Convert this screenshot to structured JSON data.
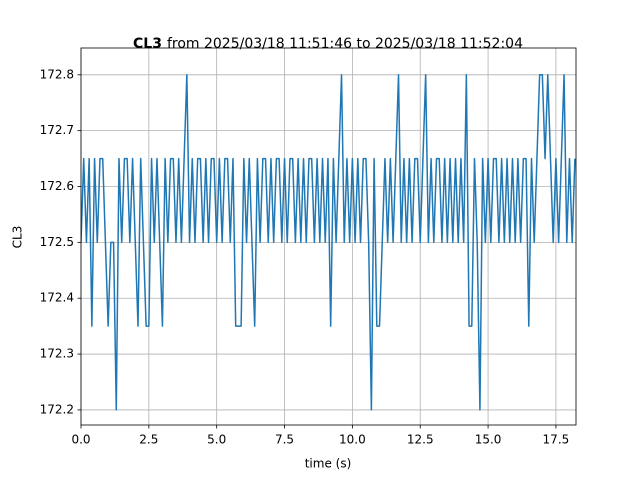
{
  "chart_data": {
    "type": "line",
    "title_parts": [
      "CL3",
      "from 2025/03/18 11:51:46 to 2025/03/18 11:52:04"
    ],
    "xlabel": "time (s)",
    "ylabel": "CL3",
    "color": "#1f77b4",
    "grid": true,
    "xlim": [
      0,
      18.24
    ],
    "ylim": [
      172.173,
      172.848
    ],
    "xticks": [
      {
        "value": 0,
        "label": "0.0"
      },
      2.5,
      {
        "value": 5,
        "label": "5.0"
      },
      7.5,
      {
        "value": 10,
        "label": "10.0"
      },
      12.5,
      {
        "value": 15,
        "label": "15.0"
      },
      17.5
    ],
    "yticks": [
      172.2,
      172.3,
      172.4,
      172.5,
      172.6,
      172.7,
      172.8
    ],
    "x": [
      0,
      0.1,
      0.2,
      0.3,
      0.4,
      0.5,
      0.6,
      0.7,
      0.8,
      0.9,
      1,
      1.1,
      1.2,
      1.3,
      1.4,
      1.5,
      1.6,
      1.7,
      1.8,
      1.9,
      2,
      2.1,
      2.2,
      2.3,
      2.4,
      2.5,
      2.6,
      2.7,
      2.8,
      2.9,
      3,
      3.1,
      3.2,
      3.3,
      3.4,
      3.5,
      3.6,
      3.7,
      3.8,
      3.9,
      4,
      4.1,
      4.2,
      4.3,
      4.4,
      4.5,
      4.6,
      4.7,
      4.8,
      4.9,
      5,
      5.1,
      5.2,
      5.3,
      5.4,
      5.5,
      5.6,
      5.7,
      5.8,
      5.9,
      6,
      6.1,
      6.2,
      6.3,
      6.4,
      6.5,
      6.6,
      6.7,
      6.8,
      6.9,
      7,
      7.1,
      7.2,
      7.3,
      7.4,
      7.5,
      7.6,
      7.7,
      7.8,
      7.9,
      8,
      8.1,
      8.2,
      8.3,
      8.4,
      8.5,
      8.6,
      8.7,
      8.8,
      8.9,
      9,
      9.1,
      9.2,
      9.3,
      9.4,
      9.5,
      9.6,
      9.7,
      9.8,
      9.9,
      10,
      10.1,
      10.2,
      10.3,
      10.4,
      10.5,
      10.6,
      10.7,
      10.8,
      10.9,
      11,
      11.1,
      11.2,
      11.3,
      11.4,
      11.5,
      11.6,
      11.7,
      11.8,
      11.9,
      12,
      12.1,
      12.2,
      12.3,
      12.4,
      12.5,
      12.6,
      12.7,
      12.8,
      12.9,
      13,
      13.1,
      13.2,
      13.3,
      13.4,
      13.5,
      13.6,
      13.7,
      13.8,
      13.9,
      14,
      14.1,
      14.2,
      14.3,
      14.4,
      14.5,
      14.6,
      14.7,
      14.8,
      14.9,
      15,
      15.1,
      15.2,
      15.3,
      15.4,
      15.5,
      15.6,
      15.7,
      15.8,
      15.9,
      16,
      16.1,
      16.2,
      16.3,
      16.4,
      16.5,
      16.6,
      16.7,
      16.8,
      16.9,
      17,
      17.1,
      17.2,
      17.3,
      17.4,
      17.5,
      17.6,
      17.7,
      17.8,
      17.9,
      18,
      18.1,
      18.2
    ],
    "values": [
      172.5,
      172.65,
      172.5,
      172.65,
      172.35,
      172.65,
      172.5,
      172.65,
      172.65,
      172.5,
      172.35,
      172.5,
      172.5,
      172.2,
      172.65,
      172.5,
      172.65,
      172.65,
      172.5,
      172.65,
      172.5,
      172.35,
      172.65,
      172.5,
      172.35,
      172.35,
      172.65,
      172.5,
      172.65,
      172.5,
      172.35,
      172.65,
      172.5,
      172.65,
      172.65,
      172.5,
      172.65,
      172.5,
      172.65,
      172.8,
      172.5,
      172.65,
      172.5,
      172.65,
      172.65,
      172.5,
      172.65,
      172.5,
      172.65,
      172.65,
      172.5,
      172.65,
      172.5,
      172.65,
      172.65,
      172.5,
      172.65,
      172.35,
      172.35,
      172.35,
      172.65,
      172.5,
      172.65,
      172.5,
      172.35,
      172.65,
      172.5,
      172.65,
      172.65,
      172.5,
      172.65,
      172.5,
      172.65,
      172.65,
      172.5,
      172.65,
      172.5,
      172.65,
      172.65,
      172.5,
      172.65,
      172.5,
      172.65,
      172.5,
      172.65,
      172.65,
      172.5,
      172.65,
      172.5,
      172.65,
      172.5,
      172.65,
      172.35,
      172.65,
      172.5,
      172.65,
      172.8,
      172.5,
      172.65,
      172.5,
      172.65,
      172.5,
      172.65,
      172.5,
      172.65,
      172.65,
      172.5,
      172.2,
      172.65,
      172.35,
      172.35,
      172.5,
      172.65,
      172.5,
      172.65,
      172.5,
      172.65,
      172.8,
      172.5,
      172.65,
      172.5,
      172.65,
      172.5,
      172.65,
      172.65,
      172.5,
      172.65,
      172.8,
      172.5,
      172.65,
      172.5,
      172.65,
      172.65,
      172.5,
      172.65,
      172.5,
      172.65,
      172.5,
      172.65,
      172.5,
      172.65,
      172.5,
      172.8,
      172.35,
      172.35,
      172.65,
      172.5,
      172.2,
      172.65,
      172.5,
      172.65,
      172.5,
      172.65,
      172.65,
      172.5,
      172.65,
      172.5,
      172.65,
      172.5,
      172.65,
      172.5,
      172.65,
      172.5,
      172.65,
      172.65,
      172.35,
      172.65,
      172.5,
      172.65,
      172.8,
      172.8,
      172.65,
      172.8,
      172.65,
      172.5,
      172.65,
      172.5,
      172.65,
      172.8,
      172.5,
      172.65,
      172.5,
      172.65
    ]
  }
}
